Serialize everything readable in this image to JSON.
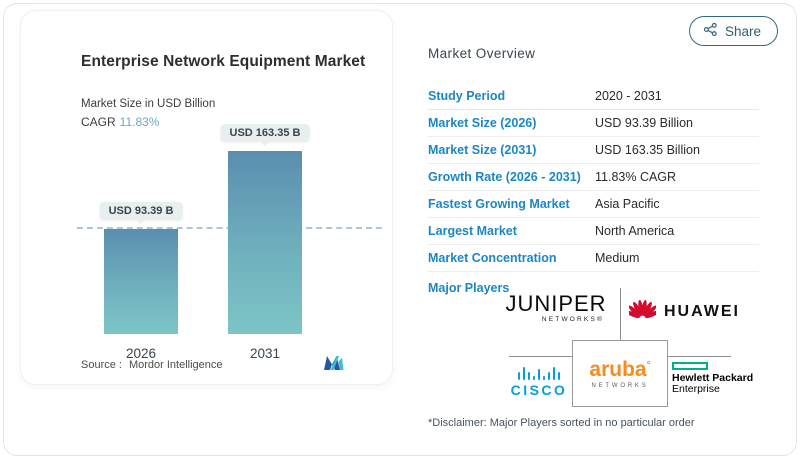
{
  "share": {
    "label": "Share"
  },
  "left_panel": {
    "title": "Enterprise Network Equipment Market",
    "subtitle": "Market Size in USD Billion",
    "cagr_label": "CAGR",
    "cagr_value": "11.83%",
    "source_label": "Source :",
    "source_value": "Mordor Intelligence"
  },
  "chart_data": {
    "type": "bar",
    "title": "Enterprise Network Equipment Market",
    "subtitle": "Market Size in USD Billion",
    "unit": "USD Billion",
    "categories": [
      "2026",
      "2031"
    ],
    "values": [
      93.39,
      163.35
    ],
    "bar_labels": [
      "USD 93.39 B",
      "USD 163.35 B"
    ],
    "cagr": "11.83%",
    "reference_line_value": 93.39,
    "bar_gradient_top": "#5a8eb0",
    "bar_gradient_bottom": "#7cc5c6",
    "legend": "none",
    "grid": "off",
    "source": "Mordor Intelligence"
  },
  "overview": {
    "heading": "Market Overview",
    "rows": [
      {
        "label": "Study Period",
        "value": "2020 - 2031"
      },
      {
        "label": "Market Size (2026)",
        "value": "USD 93.39 Billion"
      },
      {
        "label": "Market Size (2031)",
        "value": "USD 163.35 Billion"
      },
      {
        "label": "Growth Rate (2026 - 2031)",
        "value": "11.83% CAGR"
      },
      {
        "label": "Fastest Growing Market",
        "value": "Asia Pacific"
      },
      {
        "label": "Largest Market",
        "value": "North America"
      },
      {
        "label": "Market Concentration",
        "value": "Medium"
      }
    ],
    "major_players_label": "Major Players",
    "players": {
      "juniper": {
        "name": "JUNIPER",
        "sub": "NETWORKS",
        "reg": "®"
      },
      "huawei": {
        "name": "HUAWEI"
      },
      "cisco": {
        "name": "cisco"
      },
      "aruba": {
        "name": "aruba",
        "mark": "°",
        "sub": "NETWORKS"
      },
      "hpe": {
        "line1": "Hewlett Packard",
        "line2": "Enterprise"
      }
    },
    "disclaimer": "*Disclaimer: Major Players sorted in no particular order"
  },
  "colors": {
    "label_blue": "#1b87c4",
    "cagr_teal": "#6fa8c8",
    "share_teal": "#35687c",
    "bar_top": "#5a8eb0",
    "bar_bottom": "#7cc5c6",
    "huawei_red": "#d50b2d",
    "cisco_blue": "#049fd9",
    "aruba_orange": "#f68b1f",
    "hpe_green": "#00b188",
    "mordor_blue": "#2456a6",
    "mordor_teal": "#3bbfd0"
  }
}
